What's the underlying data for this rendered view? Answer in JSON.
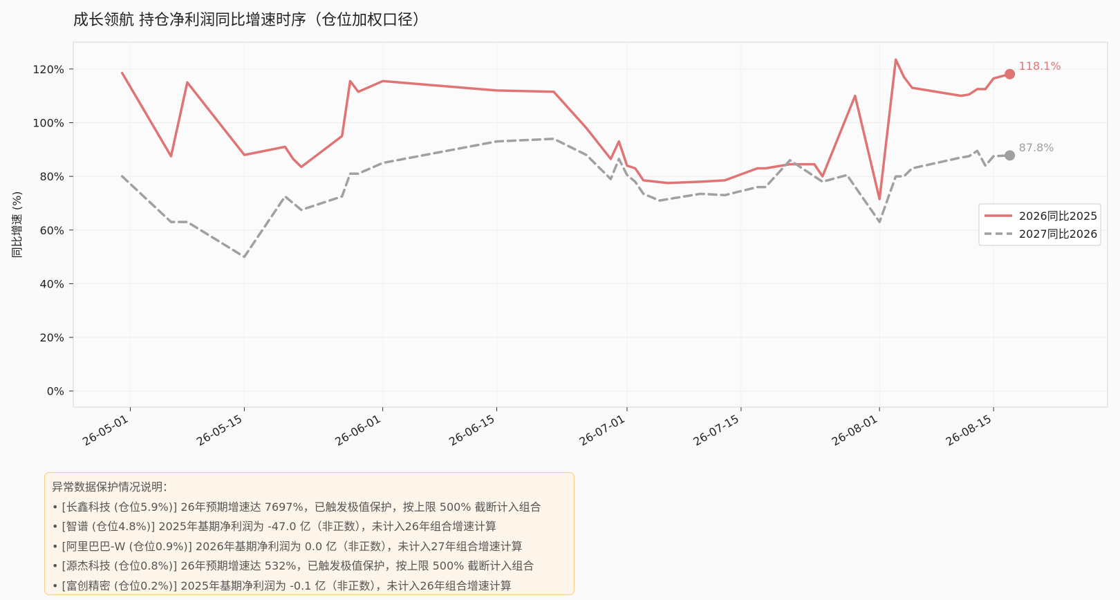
{
  "chart_data": {
    "type": "line",
    "title": "成长领航  持仓净利润同比增速时序（仓位加权口径）",
    "ylabel": "同比增速 (%)",
    "xlabel": "",
    "x_range": [
      "2026-04-24",
      "2026-08-29"
    ],
    "ylim": [
      -6,
      130
    ],
    "yticks": [
      0,
      20,
      40,
      60,
      80,
      100,
      120
    ],
    "ytick_labels": [
      "0%",
      "20%",
      "40%",
      "60%",
      "80%",
      "100%",
      "120%"
    ],
    "xticks": [
      "2026-05-01",
      "2026-05-15",
      "2026-06-01",
      "2026-06-15",
      "2026-07-01",
      "2026-07-15",
      "2026-08-01",
      "2026-08-15"
    ],
    "xtick_labels": [
      "26-05-01",
      "26-05-15",
      "26-06-01",
      "26-06-15",
      "26-07-01",
      "26-07-15",
      "26-08-01",
      "26-08-15"
    ],
    "grid": true,
    "legend_position": "center-right",
    "series": [
      {
        "name": "2026同比2025",
        "color": "#e07474",
        "dash": "solid",
        "end_label": "118.1%",
        "points": [
          [
            "2026-04-30",
            118.5
          ],
          [
            "2026-05-06",
            87.5
          ],
          [
            "2026-05-08",
            115
          ],
          [
            "2026-05-15",
            88
          ],
          [
            "2026-05-20",
            91
          ],
          [
            "2026-05-21",
            86.5
          ],
          [
            "2026-05-22",
            83.5
          ],
          [
            "2026-05-27",
            95
          ],
          [
            "2026-05-28",
            115.5
          ],
          [
            "2026-05-29",
            111.5
          ],
          [
            "2026-06-01",
            115.5
          ],
          [
            "2026-06-15",
            112
          ],
          [
            "2026-06-22",
            111.5
          ],
          [
            "2026-06-26",
            98
          ],
          [
            "2026-06-29",
            86.5
          ],
          [
            "2026-06-30",
            93
          ],
          [
            "2026-07-01",
            84
          ],
          [
            "2026-07-02",
            83
          ],
          [
            "2026-07-03",
            78.5
          ],
          [
            "2026-07-06",
            77.5
          ],
          [
            "2026-07-10",
            78
          ],
          [
            "2026-07-13",
            78.5
          ],
          [
            "2026-07-17",
            83
          ],
          [
            "2026-07-18",
            83
          ],
          [
            "2026-07-21",
            84.5
          ],
          [
            "2026-07-24",
            84.5
          ],
          [
            "2026-07-25",
            80
          ],
          [
            "2026-07-29",
            110
          ],
          [
            "2026-07-32",
            71.5
          ],
          [
            "2026-08-03",
            123.5
          ],
          [
            "2026-08-04",
            117
          ],
          [
            "2026-08-05",
            113
          ],
          [
            "2026-08-11",
            110
          ],
          [
            "2026-08-12",
            110.5
          ],
          [
            "2026-08-13",
            112.5
          ],
          [
            "2026-08-14",
            112.5
          ],
          [
            "2026-08-15",
            116.5
          ],
          [
            "2026-08-17",
            118.1
          ]
        ]
      },
      {
        "name": "2027同比2026",
        "color": "#a0a0a0",
        "dash": "dashed",
        "end_label": "87.8%",
        "points": [
          [
            "2026-04-30",
            80
          ],
          [
            "2026-05-06",
            63
          ],
          [
            "2026-05-08",
            63
          ],
          [
            "2026-05-15",
            50
          ],
          [
            "2026-05-20",
            72.5
          ],
          [
            "2026-05-22",
            67.5
          ],
          [
            "2026-05-27",
            72.5
          ],
          [
            "2026-05-28",
            81
          ],
          [
            "2026-05-29",
            81
          ],
          [
            "2026-06-01",
            85
          ],
          [
            "2026-06-15",
            93
          ],
          [
            "2026-06-22",
            94
          ],
          [
            "2026-06-26",
            88
          ],
          [
            "2026-06-29",
            79
          ],
          [
            "2026-06-30",
            86.5
          ],
          [
            "2026-07-01",
            80.5
          ],
          [
            "2026-07-02",
            78
          ],
          [
            "2026-07-03",
            73.5
          ],
          [
            "2026-07-05",
            71
          ],
          [
            "2026-07-10",
            73.5
          ],
          [
            "2026-07-13",
            73
          ],
          [
            "2026-07-17",
            76
          ],
          [
            "2026-07-18",
            76
          ],
          [
            "2026-07-21",
            86
          ],
          [
            "2026-07-22",
            84
          ],
          [
            "2026-07-25",
            78
          ],
          [
            "2026-07-28",
            80.5
          ],
          [
            "2026-07-32",
            63
          ],
          [
            "2026-08-03",
            80
          ],
          [
            "2026-08-04",
            80
          ],
          [
            "2026-08-05",
            83
          ],
          [
            "2026-08-11",
            87
          ],
          [
            "2026-08-12",
            87.5
          ],
          [
            "2026-08-13",
            89.5
          ],
          [
            "2026-08-14",
            84
          ],
          [
            "2026-08-15",
            87.5
          ],
          [
            "2026-08-17",
            87.8
          ]
        ]
      }
    ]
  },
  "notes": {
    "title": "异常数据保护情况说明：",
    "items": [
      "• [长鑫科技 (仓位5.9%)] 26年预期增速达 7697%，已触发极值保护，按上限 500% 截断计入组合",
      "• [智谱 (仓位4.8%)] 2025年基期净利润为 -47.0 亿（非正数），未计入26年组合增速计算",
      "• [阿里巴巴-W (仓位0.9%)] 2026年基期净利润为 0.0 亿（非正数），未计入27年组合增速计算",
      "• [源杰科技 (仓位0.8%)] 26年预期增速达 532%，已触发极值保护，按上限 500% 截断计入组合",
      "• [富创精密 (仓位0.2%)] 2025年基期净利润为 -0.1 亿（非正数），未计入26年组合增速计算"
    ]
  },
  "colors": {
    "series_1": "#e07474",
    "series_2": "#a0a0a0",
    "note_border": "#f7ce8a",
    "note_bg": "#fdf5e9"
  }
}
